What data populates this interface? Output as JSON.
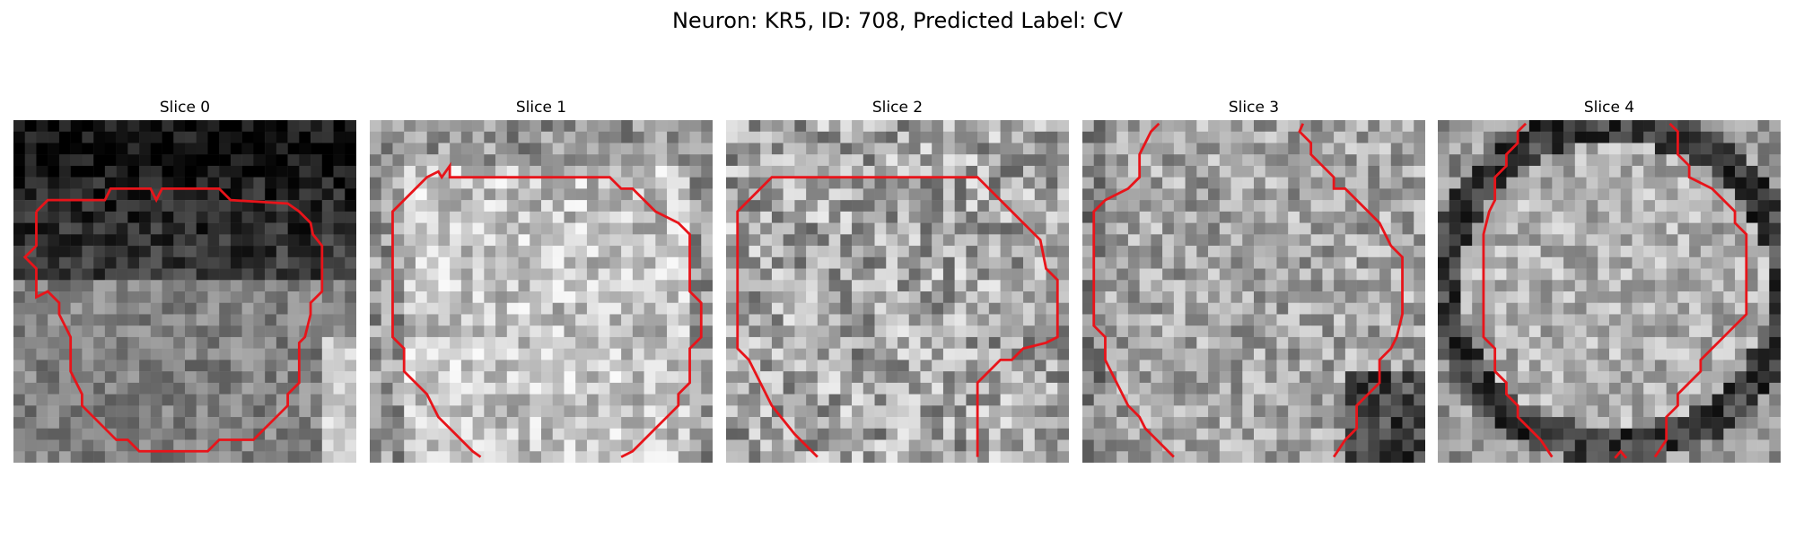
{
  "figure": {
    "title": "Neuron: KR5, ID: 708, Predicted Label: CV"
  },
  "panels": [
    {
      "title": "Slice 0"
    },
    {
      "title": "Slice 1"
    },
    {
      "title": "Slice 2"
    },
    {
      "title": "Slice 3"
    },
    {
      "title": "Slice 4"
    }
  ],
  "colors": {
    "contour": "#e8141a",
    "background": "#ffffff"
  }
}
